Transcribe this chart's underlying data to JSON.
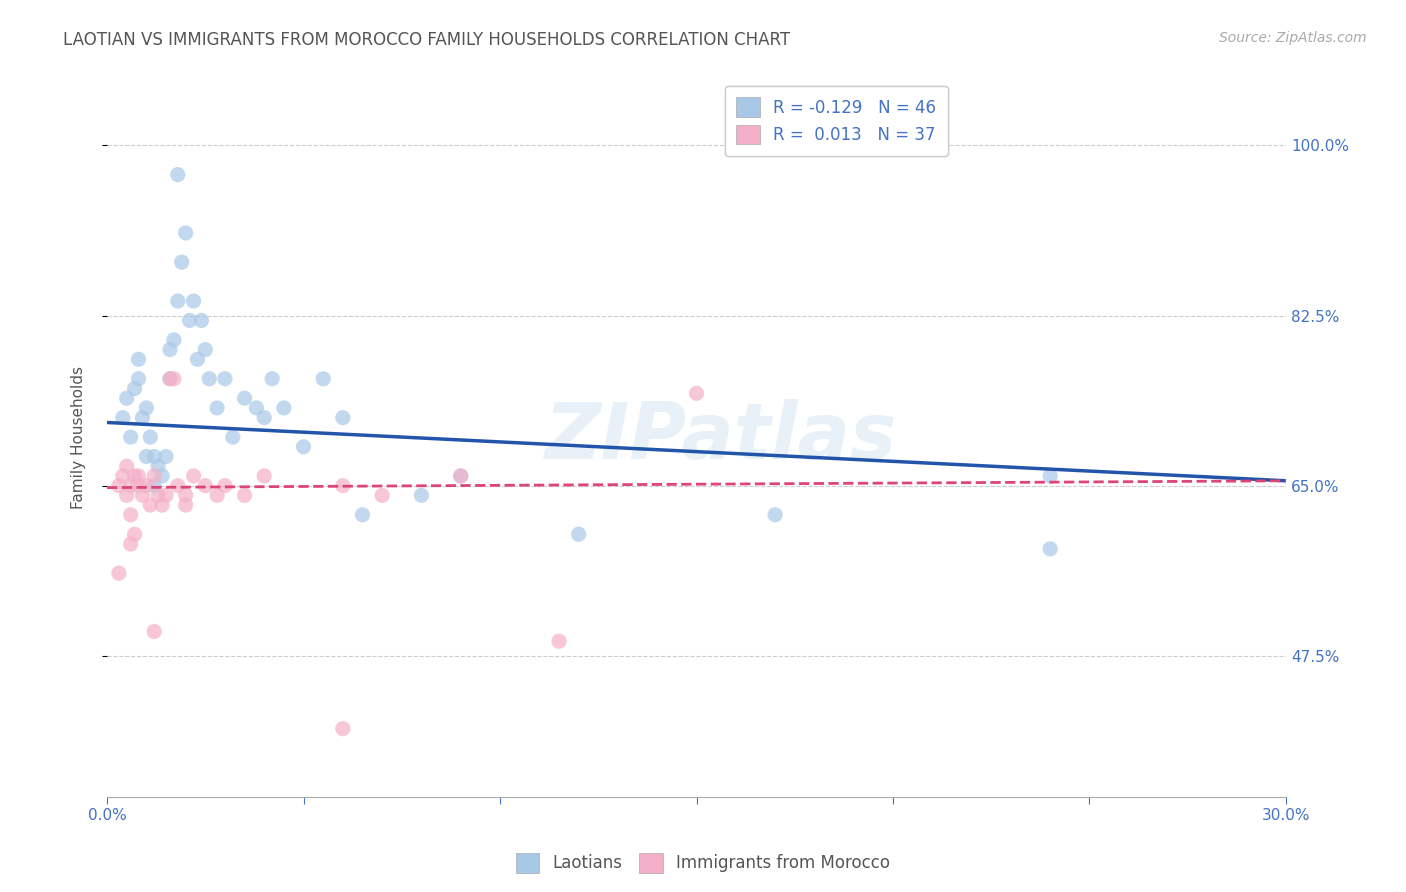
{
  "title": "LAOTIAN VS IMMIGRANTS FROM MOROCCO FAMILY HOUSEHOLDS CORRELATION CHART",
  "source": "Source: ZipAtlas.com",
  "ylabel": "Family Households",
  "y_ticks": [
    0.475,
    0.65,
    0.825,
    1.0
  ],
  "y_tick_labels": [
    "47.5%",
    "65.0%",
    "82.5%",
    "100.0%"
  ],
  "x_ticks": [
    0.0,
    0.05,
    0.1,
    0.15,
    0.2,
    0.25,
    0.3
  ],
  "x_tick_labels": [
    "0.0%",
    "",
    "",
    "",
    "",
    "",
    "30.0%"
  ],
  "xlim": [
    0.0,
    0.3
  ],
  "ylim": [
    0.33,
    1.07
  ],
  "watermark": "ZIPatlas",
  "legend_blue_label": "Laotians",
  "legend_pink_label": "Immigrants from Morocco",
  "R_blue": -0.129,
  "N_blue": 46,
  "R_pink": 0.013,
  "N_pink": 37,
  "blue_color": "#a8c8e8",
  "pink_color": "#f4b0c8",
  "blue_line_color": "#2255aa",
  "pink_line_color": "#dd4477",
  "axis_color": "#4472c4",
  "blue_line_x": [
    0.0,
    0.3
  ],
  "blue_line_y": [
    0.715,
    0.655
  ],
  "pink_line_x": [
    0.0,
    0.3
  ],
  "pink_line_y": [
    0.648,
    0.655
  ],
  "blue_scatter": [
    [
      0.004,
      0.72
    ],
    [
      0.005,
      0.74
    ],
    [
      0.006,
      0.7
    ],
    [
      0.007,
      0.75
    ],
    [
      0.008,
      0.76
    ],
    [
      0.008,
      0.78
    ],
    [
      0.009,
      0.72
    ],
    [
      0.01,
      0.73
    ],
    [
      0.01,
      0.68
    ],
    [
      0.011,
      0.7
    ],
    [
      0.012,
      0.68
    ],
    [
      0.012,
      0.65
    ],
    [
      0.013,
      0.67
    ],
    [
      0.014,
      0.66
    ],
    [
      0.015,
      0.68
    ],
    [
      0.016,
      0.79
    ],
    [
      0.016,
      0.76
    ],
    [
      0.017,
      0.8
    ],
    [
      0.018,
      0.84
    ],
    [
      0.018,
      0.97
    ],
    [
      0.019,
      0.88
    ],
    [
      0.02,
      0.91
    ],
    [
      0.021,
      0.82
    ],
    [
      0.022,
      0.84
    ],
    [
      0.023,
      0.78
    ],
    [
      0.024,
      0.82
    ],
    [
      0.025,
      0.79
    ],
    [
      0.026,
      0.76
    ],
    [
      0.028,
      0.73
    ],
    [
      0.03,
      0.76
    ],
    [
      0.032,
      0.7
    ],
    [
      0.035,
      0.74
    ],
    [
      0.038,
      0.73
    ],
    [
      0.04,
      0.72
    ],
    [
      0.042,
      0.76
    ],
    [
      0.045,
      0.73
    ],
    [
      0.05,
      0.69
    ],
    [
      0.055,
      0.76
    ],
    [
      0.06,
      0.72
    ],
    [
      0.065,
      0.62
    ],
    [
      0.08,
      0.64
    ],
    [
      0.09,
      0.66
    ],
    [
      0.12,
      0.6
    ],
    [
      0.24,
      0.66
    ],
    [
      0.24,
      0.585
    ],
    [
      0.17,
      0.62
    ]
  ],
  "pink_scatter": [
    [
      0.003,
      0.65
    ],
    [
      0.004,
      0.66
    ],
    [
      0.005,
      0.64
    ],
    [
      0.005,
      0.67
    ],
    [
      0.006,
      0.65
    ],
    [
      0.006,
      0.62
    ],
    [
      0.007,
      0.66
    ],
    [
      0.008,
      0.66
    ],
    [
      0.008,
      0.65
    ],
    [
      0.009,
      0.64
    ],
    [
      0.01,
      0.65
    ],
    [
      0.011,
      0.63
    ],
    [
      0.012,
      0.66
    ],
    [
      0.013,
      0.64
    ],
    [
      0.014,
      0.63
    ],
    [
      0.015,
      0.64
    ],
    [
      0.016,
      0.76
    ],
    [
      0.017,
      0.76
    ],
    [
      0.018,
      0.65
    ],
    [
      0.02,
      0.64
    ],
    [
      0.022,
      0.66
    ],
    [
      0.025,
      0.65
    ],
    [
      0.028,
      0.64
    ],
    [
      0.03,
      0.65
    ],
    [
      0.035,
      0.64
    ],
    [
      0.04,
      0.66
    ],
    [
      0.003,
      0.56
    ],
    [
      0.006,
      0.59
    ],
    [
      0.007,
      0.6
    ],
    [
      0.012,
      0.5
    ],
    [
      0.02,
      0.63
    ],
    [
      0.06,
      0.65
    ],
    [
      0.07,
      0.64
    ],
    [
      0.09,
      0.66
    ],
    [
      0.115,
      0.49
    ],
    [
      0.15,
      0.745
    ],
    [
      0.06,
      0.4
    ]
  ]
}
